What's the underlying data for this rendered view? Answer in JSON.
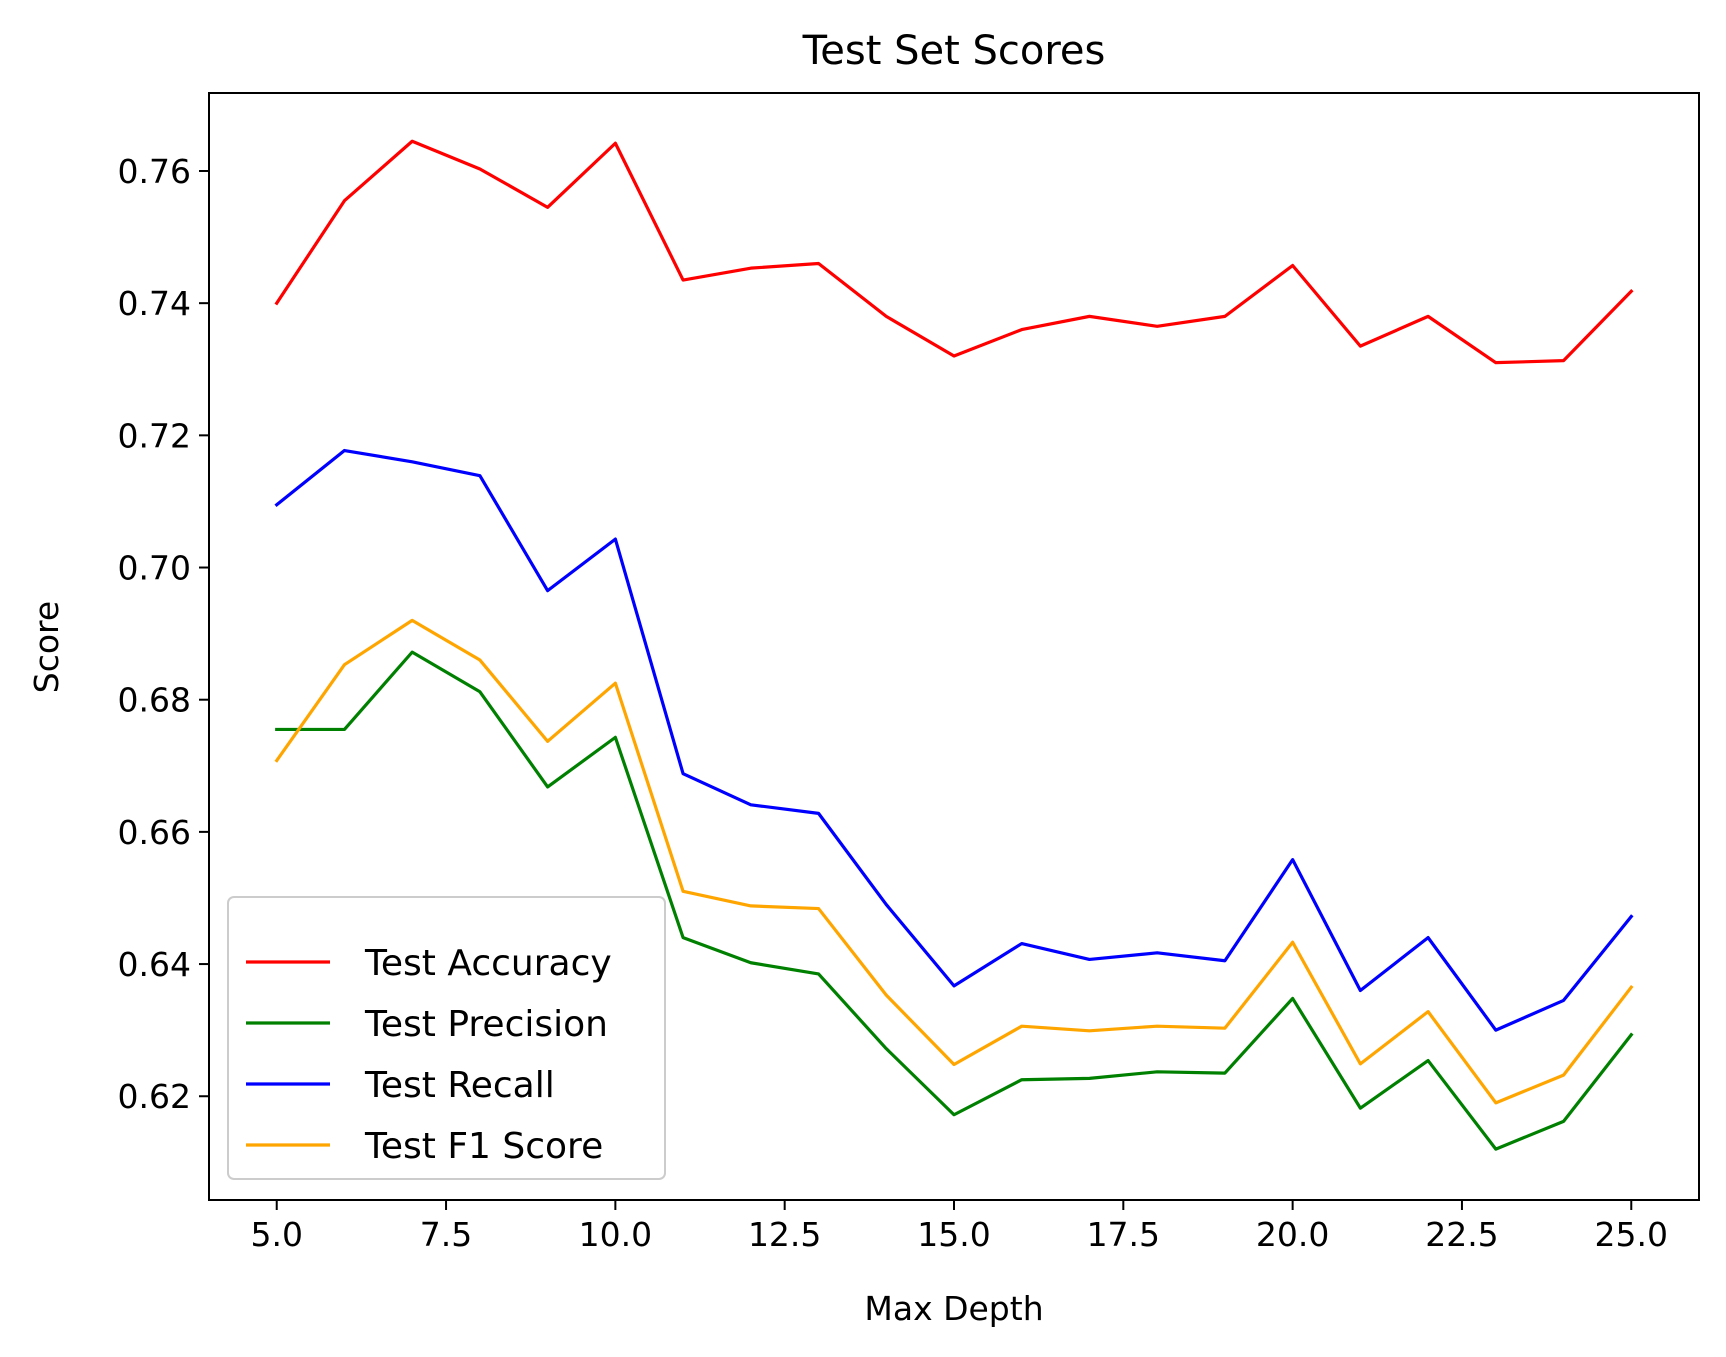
{
  "chart_data": {
    "type": "line",
    "title": "Test Set Scores",
    "xlabel": "Max Depth",
    "ylabel": "Score",
    "xlim": [
      4.0,
      26.0
    ],
    "ylim": [
      0.6043,
      0.7718
    ],
    "xticks": [
      5.0,
      7.5,
      10.0,
      12.5,
      15.0,
      17.5,
      20.0,
      22.5,
      25.0
    ],
    "xtick_labels": [
      "5.0",
      "7.5",
      "10.0",
      "12.5",
      "15.0",
      "17.5",
      "20.0",
      "22.5",
      "25.0"
    ],
    "yticks": [
      0.62,
      0.64,
      0.66,
      0.68,
      0.7,
      0.72,
      0.74,
      0.76
    ],
    "ytick_labels": [
      "0.62",
      "0.64",
      "0.66",
      "0.68",
      "0.70",
      "0.72",
      "0.74",
      "0.76"
    ],
    "grid": false,
    "legend_position": "lower-left",
    "x": [
      5,
      6,
      7,
      8,
      9,
      10,
      11,
      12,
      13,
      14,
      15,
      16,
      17,
      18,
      19,
      20,
      21,
      22,
      23,
      24,
      25
    ],
    "series": [
      {
        "name": "Test Accuracy",
        "color": "#ff0000",
        "values": [
          0.74,
          0.7555,
          0.7645,
          0.7603,
          0.7545,
          0.7642,
          0.7435,
          0.7453,
          0.746,
          0.738,
          0.732,
          0.736,
          0.738,
          0.7365,
          0.738,
          0.7457,
          0.7335,
          0.738,
          0.731,
          0.7313,
          0.7418
        ]
      },
      {
        "name": "Test Precision",
        "color": "#008000",
        "values": [
          0.6755,
          0.6755,
          0.6872,
          0.6812,
          0.6668,
          0.6743,
          0.644,
          0.6402,
          0.6385,
          0.6272,
          0.6172,
          0.6225,
          0.6227,
          0.6237,
          0.6235,
          0.6348,
          0.6182,
          0.6254,
          0.612,
          0.6162,
          0.6293
        ]
      },
      {
        "name": "Test Recall",
        "color": "#0000ff",
        "values": [
          0.7095,
          0.7177,
          0.716,
          0.7139,
          0.6965,
          0.7043,
          0.6688,
          0.6641,
          0.6628,
          0.649,
          0.6367,
          0.6431,
          0.6407,
          0.6417,
          0.6405,
          0.6558,
          0.636,
          0.644,
          0.63,
          0.6345,
          0.6472
        ]
      },
      {
        "name": "Test F1 Score",
        "color": "#ffa500",
        "values": [
          0.6708,
          0.6853,
          0.692,
          0.686,
          0.6737,
          0.6825,
          0.651,
          0.6488,
          0.6484,
          0.6353,
          0.6248,
          0.6306,
          0.6299,
          0.6306,
          0.6303,
          0.6433,
          0.6249,
          0.6328,
          0.619,
          0.6232,
          0.6365
        ]
      }
    ]
  }
}
